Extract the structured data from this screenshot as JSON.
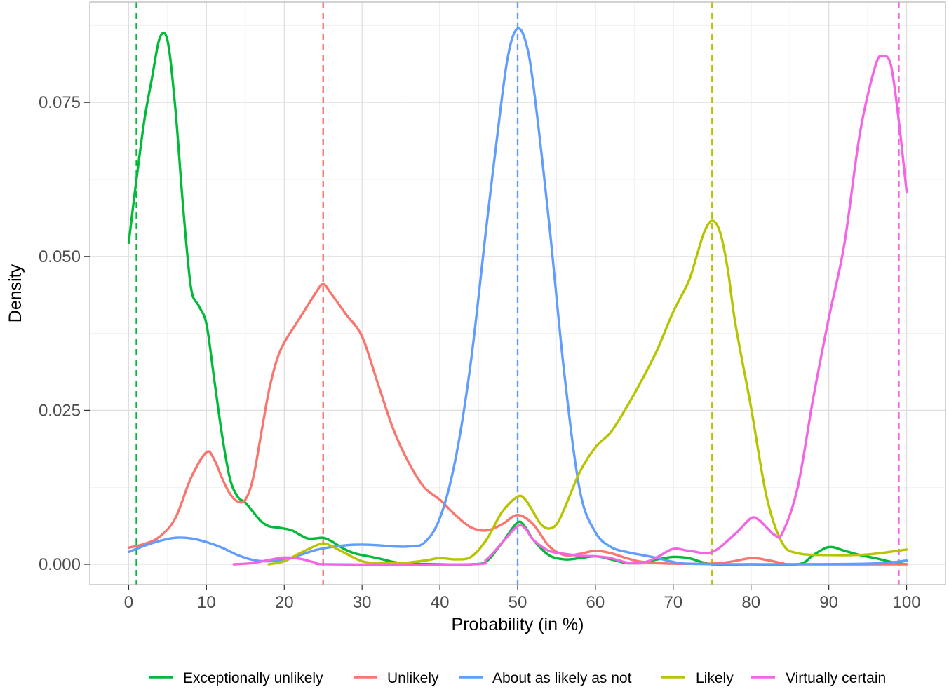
{
  "chart_data": {
    "type": "line",
    "title": "",
    "xlabel": "Probability (in %)",
    "ylabel": "Density",
    "xlim": [
      -5,
      105
    ],
    "ylim": [
      -0.0033,
      0.0913
    ],
    "x_ticks": [
      0,
      10,
      20,
      30,
      40,
      50,
      60,
      70,
      80,
      90,
      100
    ],
    "x_tick_labels": [
      "0",
      "10",
      "20",
      "30",
      "40",
      "50",
      "60",
      "70",
      "80",
      "90",
      "100"
    ],
    "y_ticks": [
      0,
      0.025,
      0.05,
      0.075
    ],
    "y_tick_labels": [
      "0.000",
      "0.025",
      "0.050",
      "0.075"
    ],
    "grid": true,
    "legend_position": "bottom",
    "series": [
      {
        "name": "Exceptionally unlikely",
        "color": "#00BA38",
        "reference_x": 1,
        "points": [
          [
            0,
            0.0522
          ],
          [
            1,
            0.0625
          ],
          [
            2,
            0.072
          ],
          [
            3,
            0.079
          ],
          [
            4,
            0.0855
          ],
          [
            5,
            0.085
          ],
          [
            6,
            0.074
          ],
          [
            7,
            0.058
          ],
          [
            8,
            0.045
          ],
          [
            9,
            0.042
          ],
          [
            10,
            0.039
          ],
          [
            11,
            0.03
          ],
          [
            12,
            0.021
          ],
          [
            13,
            0.014
          ],
          [
            14,
            0.011
          ],
          [
            15,
            0.01
          ],
          [
            16,
            0.0085
          ],
          [
            17,
            0.007
          ],
          [
            18,
            0.0062
          ],
          [
            19,
            0.006
          ],
          [
            20,
            0.0058
          ],
          [
            21,
            0.0055
          ],
          [
            22,
            0.0048
          ],
          [
            23,
            0.0042
          ],
          [
            24,
            0.0042
          ],
          [
            25,
            0.0043
          ],
          [
            26,
            0.0038
          ],
          [
            27,
            0.003
          ],
          [
            28,
            0.0023
          ],
          [
            29,
            0.0018
          ],
          [
            30,
            0.0015
          ],
          [
            32,
            0.001
          ],
          [
            35,
            0.0002
          ],
          [
            40,
            0.0
          ],
          [
            44,
            0.0
          ],
          [
            46,
            0.0005
          ],
          [
            48,
            0.0035
          ],
          [
            50,
            0.0068
          ],
          [
            51,
            0.006
          ],
          [
            52,
            0.004
          ],
          [
            54,
            0.0015
          ],
          [
            56,
            0.0008
          ],
          [
            58,
            0.001
          ],
          [
            60,
            0.0013
          ],
          [
            62,
            0.0008
          ],
          [
            64,
            0.0002
          ],
          [
            66,
            0.0003
          ],
          [
            68,
            0.0008
          ],
          [
            70,
            0.0012
          ],
          [
            72,
            0.001
          ],
          [
            75,
            0.0
          ],
          [
            80,
            0.0
          ],
          [
            86,
            0.0
          ],
          [
            88,
            0.0015
          ],
          [
            90,
            0.0028
          ],
          [
            92,
            0.0022
          ],
          [
            94,
            0.0015
          ],
          [
            96,
            0.001
          ],
          [
            98,
            0.0004
          ],
          [
            100,
            0.0
          ]
        ]
      },
      {
        "name": "Unlikely",
        "color": "#F8766D",
        "reference_x": 25,
        "points": [
          [
            0,
            0.0027
          ],
          [
            2,
            0.0033
          ],
          [
            4,
            0.0045
          ],
          [
            6,
            0.0075
          ],
          [
            8,
            0.014
          ],
          [
            10,
            0.0182
          ],
          [
            11,
            0.017
          ],
          [
            12,
            0.014
          ],
          [
            13,
            0.0115
          ],
          [
            14,
            0.0102
          ],
          [
            15,
            0.0105
          ],
          [
            16,
            0.014
          ],
          [
            17,
            0.021
          ],
          [
            18,
            0.028
          ],
          [
            19,
            0.033
          ],
          [
            20,
            0.036
          ],
          [
            22,
            0.04
          ],
          [
            24,
            0.044
          ],
          [
            25,
            0.0455
          ],
          [
            26,
            0.044
          ],
          [
            28,
            0.0405
          ],
          [
            30,
            0.037
          ],
          [
            32,
            0.0295
          ],
          [
            34,
            0.022
          ],
          [
            36,
            0.0165
          ],
          [
            38,
            0.0125
          ],
          [
            40,
            0.0105
          ],
          [
            42,
            0.008
          ],
          [
            44,
            0.006
          ],
          [
            46,
            0.0055
          ],
          [
            48,
            0.0065
          ],
          [
            50,
            0.008
          ],
          [
            52,
            0.0065
          ],
          [
            54,
            0.003
          ],
          [
            56,
            0.0015
          ],
          [
            58,
            0.0017
          ],
          [
            60,
            0.0022
          ],
          [
            62,
            0.0018
          ],
          [
            64,
            0.001
          ],
          [
            66,
            0.0004
          ],
          [
            70,
            0.0001
          ],
          [
            76,
            0.0002
          ],
          [
            80,
            0.001
          ],
          [
            82,
            0.0007
          ],
          [
            84,
            0.0002
          ],
          [
            86,
            0.0
          ],
          [
            100,
            0.0
          ]
        ]
      },
      {
        "name": "About as likely as not",
        "color": "#619CFF",
        "reference_x": 50,
        "points": [
          [
            0,
            0.002
          ],
          [
            2,
            0.003
          ],
          [
            4,
            0.0038
          ],
          [
            6,
            0.0043
          ],
          [
            8,
            0.0042
          ],
          [
            10,
            0.0036
          ],
          [
            12,
            0.0027
          ],
          [
            14,
            0.0015
          ],
          [
            16,
            0.0007
          ],
          [
            18,
            0.0005
          ],
          [
            20,
            0.0008
          ],
          [
            22,
            0.0015
          ],
          [
            24,
            0.0023
          ],
          [
            26,
            0.0028
          ],
          [
            28,
            0.0031
          ],
          [
            30,
            0.0032
          ],
          [
            32,
            0.0031
          ],
          [
            34,
            0.0029
          ],
          [
            36,
            0.0029
          ],
          [
            38,
            0.0035
          ],
          [
            40,
            0.0075
          ],
          [
            42,
            0.017
          ],
          [
            44,
            0.033
          ],
          [
            46,
            0.055
          ],
          [
            48,
            0.076
          ],
          [
            49,
            0.084
          ],
          [
            50,
            0.087
          ],
          [
            51,
            0.085
          ],
          [
            52,
            0.078
          ],
          [
            54,
            0.056
          ],
          [
            56,
            0.031
          ],
          [
            58,
            0.012
          ],
          [
            60,
            0.0052
          ],
          [
            62,
            0.0028
          ],
          [
            64,
            0.002
          ],
          [
            66,
            0.0015
          ],
          [
            68,
            0.001
          ],
          [
            70,
            0.0004
          ],
          [
            72,
            0.0001
          ],
          [
            80,
            0.0
          ],
          [
            95,
            0.0001
          ],
          [
            100,
            0.0006
          ]
        ]
      },
      {
        "name": "Likely",
        "color": "#B7C400",
        "reference_x": 75,
        "points": [
          [
            18,
            0.0
          ],
          [
            20,
            0.0005
          ],
          [
            22,
            0.0018
          ],
          [
            24,
            0.003
          ],
          [
            25,
            0.0034
          ],
          [
            26,
            0.003
          ],
          [
            28,
            0.0017
          ],
          [
            30,
            0.0005
          ],
          [
            32,
            0.0002
          ],
          [
            35,
            0.0002
          ],
          [
            38,
            0.0006
          ],
          [
            40,
            0.001
          ],
          [
            42,
            0.0008
          ],
          [
            44,
            0.0012
          ],
          [
            46,
            0.004
          ],
          [
            48,
            0.0085
          ],
          [
            50,
            0.011
          ],
          [
            51,
            0.0105
          ],
          [
            52,
            0.0085
          ],
          [
            53,
            0.0065
          ],
          [
            54,
            0.0058
          ],
          [
            55,
            0.0065
          ],
          [
            56,
            0.009
          ],
          [
            58,
            0.015
          ],
          [
            60,
            0.019
          ],
          [
            62,
            0.0215
          ],
          [
            64,
            0.0255
          ],
          [
            66,
            0.03
          ],
          [
            68,
            0.035
          ],
          [
            70,
            0.041
          ],
          [
            72,
            0.046
          ],
          [
            73,
            0.05
          ],
          [
            74,
            0.054
          ],
          [
            75,
            0.0558
          ],
          [
            76,
            0.054
          ],
          [
            77,
            0.048
          ],
          [
            78,
            0.039
          ],
          [
            80,
            0.0255
          ],
          [
            82,
            0.011
          ],
          [
            84,
            0.0035
          ],
          [
            86,
            0.0018
          ],
          [
            90,
            0.0015
          ],
          [
            95,
            0.0016
          ],
          [
            100,
            0.0024
          ]
        ]
      },
      {
        "name": "Virtually certain",
        "color": "#F564E3",
        "reference_x": 99,
        "points": [
          [
            13.5,
            0.0
          ],
          [
            16,
            0.0002
          ],
          [
            18,
            0.0007
          ],
          [
            20,
            0.0011
          ],
          [
            22,
            0.0009
          ],
          [
            24,
            0.0003
          ],
          [
            26,
            0.0
          ],
          [
            44,
            0.0
          ],
          [
            46,
            0.0008
          ],
          [
            48,
            0.0035
          ],
          [
            50,
            0.0062
          ],
          [
            51,
            0.0058
          ],
          [
            52,
            0.004
          ],
          [
            54,
            0.0022
          ],
          [
            56,
            0.0017
          ],
          [
            58,
            0.0014
          ],
          [
            60,
            0.0013
          ],
          [
            62,
            0.001
          ],
          [
            64,
            0.0003
          ],
          [
            66,
            0.0002
          ],
          [
            68,
            0.0012
          ],
          [
            70,
            0.0025
          ],
          [
            72,
            0.0022
          ],
          [
            75,
            0.002
          ],
          [
            78,
            0.005
          ],
          [
            80,
            0.0075
          ],
          [
            81,
            0.0072
          ],
          [
            82,
            0.006
          ],
          [
            83,
            0.0048
          ],
          [
            84,
            0.005
          ],
          [
            86,
            0.0125
          ],
          [
            88,
            0.027
          ],
          [
            90,
            0.04
          ],
          [
            92,
            0.052
          ],
          [
            94,
            0.07
          ],
          [
            96,
            0.081
          ],
          [
            97,
            0.0825
          ],
          [
            98,
            0.081
          ],
          [
            99,
            0.072
          ],
          [
            100,
            0.0605
          ]
        ]
      }
    ]
  }
}
